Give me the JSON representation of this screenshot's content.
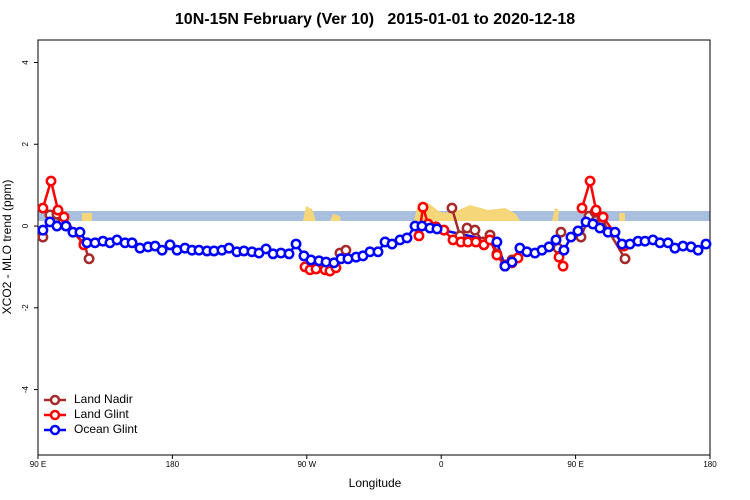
{
  "chart_data": {
    "type": "line",
    "title": "10N-15N February (Ver 10)   2015-01-01 to 2020-12-18",
    "x_label": "Longitude",
    "y_label": "XCO2 - MLO trend (ppm)",
    "xlim": [
      90,
      540
    ],
    "ylim": [
      -5.6,
      4.55
    ],
    "xticks": [
      {
        "value": 90,
        "label": "90 E"
      },
      180,
      {
        "value": 270,
        "label": "90 W"
      },
      {
        "value": 360,
        "label": "0"
      },
      {
        "value": 450,
        "label": "90 E"
      },
      {
        "value": 540,
        "label": "180"
      }
    ],
    "yticks": [
      -4,
      -2,
      0,
      2,
      4
    ],
    "legend": "bottom-left",
    "series": [
      {
        "name": "Land Nadir",
        "color": "#a52a2a",
        "x": [
          93.3,
          98,
          102.7,
          106.7,
          120.8,
          124.2,
          null,
          292.2,
          296.2,
          null,
          367.2,
          372.6,
          377.3,
          382.6,
          388,
          392.7,
          397.3,
          402.7,
          407.4,
          null,
          438.2,
          440.2,
          null,
          453.6,
          459,
          463,
          467.7,
          483.1
        ],
        "values": [
          -0.27,
          0.27,
          0.29,
          0.12,
          -0.44,
          -0.8,
          null,
          -0.66,
          -0.59,
          null,
          0.44,
          -0.24,
          -0.05,
          -0.1,
          -0.39,
          -0.22,
          -0.68,
          -0.95,
          -0.83,
          null,
          -0.54,
          -0.15,
          null,
          -0.27,
          0.24,
          0.34,
          0.15,
          -0.8
        ]
      },
      {
        "name": "Land Glint",
        "color": "#ff0000",
        "x": [
          93.3,
          98.7,
          103.4,
          107.4,
          120.7,
          null,
          268.8,
          272.2,
          276.2,
          282.2,
          285.5,
          289.5,
          null,
          345.1,
          347.8,
          351.2,
          356.5,
          361.8,
          367.9,
          373.2,
          377.9,
          383.2,
          388.6,
          392.6,
          397.3,
          402.7,
          407.4,
          411.4,
          null,
          438.9,
          441.6,
          null,
          454.3,
          459.7,
          463.7,
          468.4,
          482.4
        ],
        "values": [
          0.44,
          1.1,
          0.39,
          0.22,
          -0.46,
          null,
          -1.0,
          -1.07,
          -1.05,
          -1.07,
          -1.1,
          -1.02,
          null,
          -0.24,
          0.46,
          0.05,
          -0.02,
          -0.1,
          -0.34,
          -0.39,
          -0.39,
          -0.39,
          -0.46,
          -0.34,
          -0.71,
          -0.98,
          -0.9,
          -0.78,
          null,
          -0.76,
          -0.98,
          null,
          0.44,
          1.1,
          0.39,
          0.22,
          -0.49
        ]
      },
      {
        "name": "Ocean Glint",
        "color": "#0000ff",
        "x": [
          93.3,
          98,
          102.7,
          108.7,
          113.4,
          118.1,
          122.8,
          128.2,
          133.5,
          138.2,
          142.9,
          148.3,
          153,
          158.3,
          163.7,
          168.4,
          173.1,
          178.4,
          183.1,
          188.4,
          193.1,
          197.8,
          203.2,
          207.9,
          213.2,
          217.9,
          223.2,
          227.9,
          233.3,
          238,
          242.7,
          247.4,
          252.7,
          258.1,
          262.8,
          268.1,
          272.8,
          278.2,
          282.9,
          288.2,
          292.9,
          297.6,
          303,
          307.6,
          312.3,
          317.7,
          322.4,
          327.1,
          332.4,
          337.1,
          342.5,
          347.1,
          352.5,
          357.2,
          397.3,
          402.7,
          407.4,
          412.7,
          417.4,
          422.8,
          427.5,
          432.2,
          436.9,
          442.2,
          446.9,
          451.6,
          457,
          461.6,
          466.3,
          471.7,
          476.4,
          481.1,
          486.4,
          491.8,
          496.5,
          501.8,
          506.5,
          511.9,
          516.5,
          521.9,
          527.3,
          532,
          537.3
        ],
        "values": [
          -0.1,
          0.1,
          0,
          0,
          -0.15,
          -0.15,
          -0.41,
          -0.41,
          -0.37,
          -0.41,
          -0.34,
          -0.41,
          -0.41,
          -0.54,
          -0.51,
          -0.49,
          -0.59,
          -0.46,
          -0.59,
          -0.54,
          -0.59,
          -0.59,
          -0.61,
          -0.61,
          -0.59,
          -0.54,
          -0.63,
          -0.61,
          -0.63,
          -0.66,
          -0.56,
          -0.68,
          -0.66,
          -0.68,
          -0.44,
          -0.73,
          -0.83,
          -0.85,
          -0.88,
          -0.9,
          -0.8,
          -0.8,
          -0.76,
          -0.73,
          -0.63,
          -0.63,
          -0.39,
          -0.44,
          -0.34,
          -0.29,
          0,
          0,
          -0.05,
          -0.07,
          -0.39,
          -0.98,
          -0.88,
          -0.54,
          -0.63,
          -0.66,
          -0.59,
          -0.51,
          -0.34,
          -0.59,
          -0.27,
          -0.12,
          0.1,
          0.05,
          -0.05,
          -0.15,
          -0.15,
          -0.44,
          -0.44,
          -0.37,
          -0.37,
          -0.34,
          -0.41,
          -0.41,
          -0.54,
          -0.49,
          -0.51,
          -0.59,
          -0.44
        ]
      }
    ]
  }
}
